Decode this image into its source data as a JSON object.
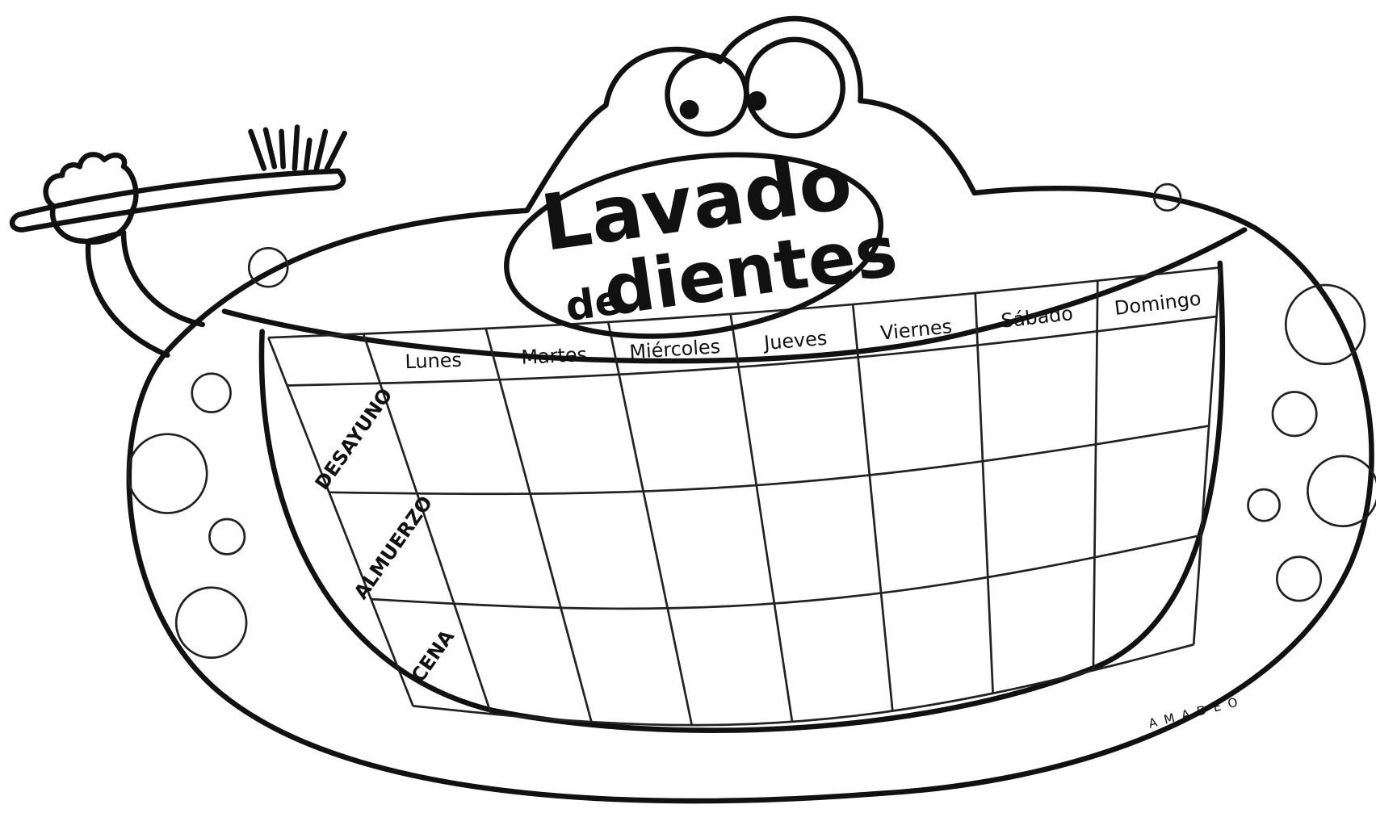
{
  "title": {
    "main": "Lavado",
    "prefix": "de",
    "word": "dientes"
  },
  "table": {
    "columns": [
      "Lunes",
      "Martes",
      "Miércoles",
      "Jueves",
      "Viernes",
      "Sábado",
      "Domingo"
    ],
    "rows": [
      "DESAYUNO",
      "ALMUERZO",
      "CENA"
    ]
  },
  "signature": "A M A D E O"
}
